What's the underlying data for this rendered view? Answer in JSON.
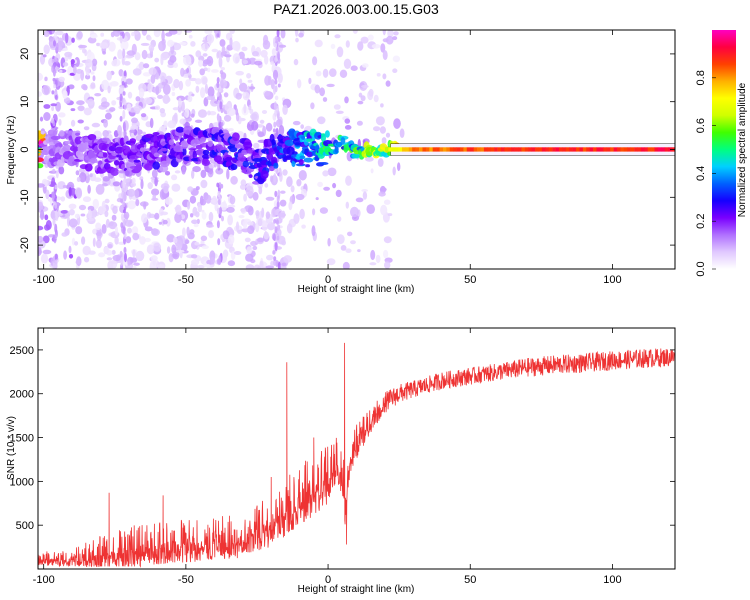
{
  "chart_data": [
    {
      "type": "heatmap",
      "title": "PAZ1.2026.003.00.15.G03",
      "xlabel": "Height of straight line (km)",
      "ylabel": "Frequency (Hz)",
      "xlim": [
        -102,
        122
      ],
      "ylim": [
        -25,
        25
      ],
      "xticks": [
        -100,
        -50,
        0,
        50,
        100
      ],
      "yticks": [
        -20,
        -10,
        0,
        10,
        20
      ],
      "colorbar": {
        "label": "Normalized spectral amplitude",
        "range": [
          0,
          1
        ],
        "ticks": [
          0.0,
          0.2,
          0.4,
          0.6,
          0.8
        ],
        "colormap": [
          "#ffffff",
          "#e0c8ff",
          "#b070ff",
          "#7a00ff",
          "#1500ff",
          "#0060ff",
          "#00d0ff",
          "#00ff80",
          "#40ff00",
          "#d0ff00",
          "#ffff00",
          "#ffb000",
          "#ff4000",
          "#ff0040",
          "#ff00c0"
        ]
      },
      "signal_track": {
        "description_points": [
          {
            "x": -100,
            "y": 0.5,
            "amp": 0.15
          },
          {
            "x": -85,
            "y": -0.5,
            "amp": 0.2
          },
          {
            "x": -70,
            "y": -1.5,
            "amp": 0.22
          },
          {
            "x": -60,
            "y": 0.0,
            "amp": 0.25
          },
          {
            "x": -50,
            "y": 1.0,
            "amp": 0.25
          },
          {
            "x": -40,
            "y": 0.5,
            "amp": 0.28
          },
          {
            "x": -30,
            "y": -1.0,
            "amp": 0.3
          },
          {
            "x": -25,
            "y": -4.0,
            "amp": 0.28
          },
          {
            "x": -20,
            "y": -1.0,
            "amp": 0.3
          },
          {
            "x": -15,
            "y": 1.0,
            "amp": 0.35
          },
          {
            "x": -10,
            "y": 0.0,
            "amp": 0.4
          },
          {
            "x": 0,
            "y": 0.0,
            "amp": 0.55
          },
          {
            "x": 5,
            "y": 1.5,
            "amp": 0.5
          },
          {
            "x": 10,
            "y": -0.5,
            "amp": 0.6
          },
          {
            "x": 20,
            "y": 0.0,
            "amp": 0.7
          },
          {
            "x": 30,
            "y": 0.0,
            "amp": 0.85
          },
          {
            "x": 60,
            "y": 0.0,
            "amp": 0.92
          },
          {
            "x": 122,
            "y": 0.0,
            "amp": 0.95
          }
        ]
      }
    },
    {
      "type": "line",
      "xlabel": "Height of straight line (km)",
      "ylabel": "SNR (10 * v/v)",
      "xlim": [
        -102,
        122
      ],
      "ylim": [
        0,
        2750
      ],
      "xticks": [
        -100,
        -50,
        0,
        50,
        100
      ],
      "yticks": [
        500,
        1000,
        1500,
        2000,
        2500
      ],
      "series": [
        {
          "name": "SNR",
          "color": "#ee3333",
          "x": [
            -102,
            -90,
            -80,
            -70,
            -60,
            -50,
            -40,
            -30,
            -20,
            -15,
            -10,
            -5,
            0,
            3,
            5,
            6,
            7,
            8,
            10,
            15,
            20,
            25,
            30,
            40,
            50,
            60,
            70,
            80,
            90,
            100,
            110,
            122
          ],
          "mean": [
            120,
            130,
            180,
            250,
            290,
            320,
            350,
            380,
            550,
            700,
            850,
            950,
            1100,
            1250,
            1200,
            700,
            1100,
            1300,
            1450,
            1700,
            1900,
            2000,
            2050,
            2150,
            2200,
            2250,
            2300,
            2330,
            2350,
            2380,
            2400,
            2420
          ],
          "spread": [
            80,
            100,
            200,
            250,
            250,
            250,
            250,
            250,
            300,
            350,
            350,
            350,
            350,
            300,
            350,
            200,
            300,
            250,
            200,
            150,
            120,
            110,
            100,
            100,
            100,
            100,
            110,
            110,
            110,
            110,
            110,
            110
          ],
          "spikes": [
            {
              "x": -77,
              "y": 870
            },
            {
              "x": -58,
              "y": 840
            },
            {
              "x": -20,
              "y": 1050
            },
            {
              "x": -14.5,
              "y": 2360
            },
            {
              "x": -5,
              "y": 1500
            },
            {
              "x": 5.8,
              "y": 2580
            },
            {
              "x": 6.5,
              "y": 280
            }
          ]
        }
      ]
    }
  ]
}
